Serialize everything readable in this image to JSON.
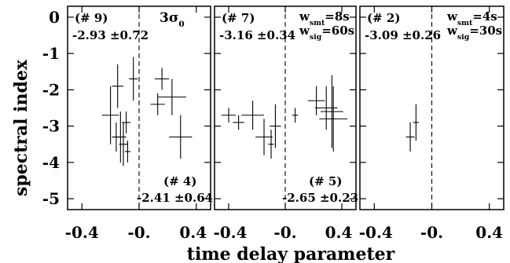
{
  "ylabel": "spectral index",
  "xlabel": "time delay parameter",
  "y_tick_labels": [
    "0",
    "-1",
    "-2",
    "-3",
    "-4",
    "-5"
  ],
  "chart_data": [
    {
      "type": "scatter",
      "xlim": [
        -0.5,
        0.5
      ],
      "ylim": [
        -5.3,
        0.3
      ],
      "x_ticks": [
        -0.4,
        0.0,
        0.4
      ],
      "x_tick_labels": [
        "-0.4",
        "-0.",
        "0.4"
      ],
      "y_ticks": [
        0,
        -1,
        -2,
        -3,
        -4,
        -5
      ],
      "vline_x": 0.0,
      "annotations": {
        "tl_id": "(# 9)",
        "tl_value": "-2.93 ±0.72",
        "tr_base": "3σ",
        "tr_sub": "0",
        "br_id": "(# 4)",
        "br_value": "-2.41 ±0.64"
      },
      "points": [
        {
          "x": -0.2,
          "y": -2.7,
          "xerr": 0.06,
          "yerr": 0.8
        },
        {
          "x": -0.15,
          "y": -1.9,
          "xerr": 0.04,
          "yerr": 0.6
        },
        {
          "x": -0.16,
          "y": -3.3,
          "xerr": 0.03,
          "yerr": 0.4
        },
        {
          "x": -0.13,
          "y": -3.3,
          "xerr": 0.04,
          "yerr": 0.7
        },
        {
          "x": -0.11,
          "y": -3.5,
          "xerr": 0.03,
          "yerr": 0.6
        },
        {
          "x": -0.09,
          "y": -2.9,
          "xerr": 0.03,
          "yerr": 0.3
        },
        {
          "x": -0.08,
          "y": -3.7,
          "xerr": 0.02,
          "yerr": 0.3
        },
        {
          "x": -0.04,
          "y": -1.7,
          "xerr": 0.03,
          "yerr": 0.6
        },
        {
          "x": 0.16,
          "y": -1.7,
          "xerr": 0.05,
          "yerr": 0.3
        },
        {
          "x": 0.13,
          "y": -2.4,
          "xerr": 0.05,
          "yerr": 0.3
        },
        {
          "x": 0.23,
          "y": -2.2,
          "xerr": 0.1,
          "yerr": 0.5
        },
        {
          "x": 0.29,
          "y": -3.3,
          "xerr": 0.08,
          "yerr": 0.6
        }
      ]
    },
    {
      "type": "scatter",
      "xlim": [
        -0.5,
        0.5
      ],
      "ylim": [
        -5.3,
        0.3
      ],
      "x_ticks": [
        -0.4,
        0.0,
        0.4
      ],
      "x_tick_labels": [
        "-0.4",
        "-0.",
        "0.4"
      ],
      "y_ticks": [
        0,
        -1,
        -2,
        -3,
        -4,
        -5
      ],
      "vline_x": 0.0,
      "annotations": {
        "tl_id": "(# 7)",
        "tl_value": "-3.16 ±0.34",
        "w_smt_base": "w",
        "w_smt_sub": "smt",
        "w_smt_val": "=8s",
        "w_sig_base": "w",
        "w_sig_sub": "sig",
        "w_sig_val": "=60s",
        "br_id": "(# 5)",
        "br_value": "-2.65 ±0.23"
      },
      "points": [
        {
          "x": -0.4,
          "y": -2.7,
          "xerr": 0.05,
          "yerr": 0.2
        },
        {
          "x": -0.33,
          "y": -2.9,
          "xerr": 0.04,
          "yerr": 0.2
        },
        {
          "x": -0.23,
          "y": -2.7,
          "xerr": 0.08,
          "yerr": 0.4
        },
        {
          "x": -0.15,
          "y": -3.3,
          "xerr": 0.06,
          "yerr": 0.5
        },
        {
          "x": -0.1,
          "y": -3.5,
          "xerr": 0.02,
          "yerr": 0.4
        },
        {
          "x": -0.07,
          "y": -3.0,
          "xerr": 0.04,
          "yerr": 0.6
        },
        {
          "x": 0.07,
          "y": -2.7,
          "xerr": 0.02,
          "yerr": 0.2
        },
        {
          "x": 0.22,
          "y": -2.3,
          "xerr": 0.06,
          "yerr": 0.4
        },
        {
          "x": 0.29,
          "y": -2.5,
          "xerr": 0.08,
          "yerr": 0.6
        },
        {
          "x": 0.33,
          "y": -2.6,
          "xerr": 0.08,
          "yerr": 1.0
        },
        {
          "x": 0.34,
          "y": -2.8,
          "xerr": 0.1,
          "yerr": 0.9
        }
      ]
    },
    {
      "type": "scatter",
      "xlim": [
        -0.5,
        0.5
      ],
      "ylim": [
        -5.3,
        0.3
      ],
      "x_ticks": [
        -0.4,
        0.0,
        0.4
      ],
      "x_tick_labels": [
        "-0.4",
        "-0.",
        "0.4"
      ],
      "y_ticks": [
        0,
        -1,
        -2,
        -3,
        -4,
        -5
      ],
      "vline_x": 0.0,
      "annotations": {
        "tl_id": "(# 2)",
        "tl_value": "-3.09 ±0.26",
        "w_smt_base": "w",
        "w_smt_sub": "smt",
        "w_smt_val": "=4s",
        "w_sig_base": "w",
        "w_sig_sub": "sig",
        "w_sig_val": "=30s"
      },
      "points": [
        {
          "x": -0.15,
          "y": -3.3,
          "xerr": 0.03,
          "yerr": 0.4
        },
        {
          "x": -0.11,
          "y": -2.9,
          "xerr": 0.02,
          "yerr": 0.5
        }
      ]
    }
  ]
}
